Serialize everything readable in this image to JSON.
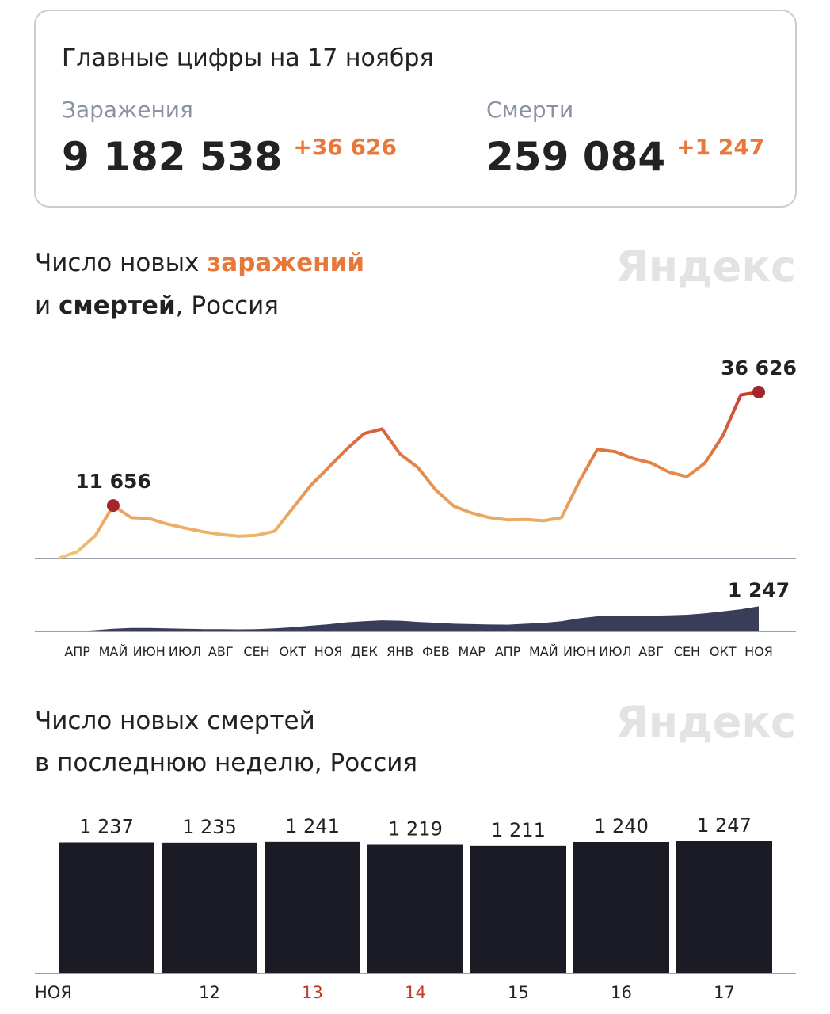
{
  "summary": {
    "title": "Главные цифры на 17 ноября",
    "items": [
      {
        "label": "Заражения",
        "value": "9 182 538",
        "delta": "+36 626"
      },
      {
        "label": "Смерти",
        "value": "259 084",
        "delta": "+1 247"
      }
    ]
  },
  "chart_data": [
    {
      "type": "line",
      "title_parts": [
        "Число новых ",
        "заражений",
        "и ",
        "смертей",
        ", Россия"
      ],
      "watermark": "Яндекс",
      "categories": [
        null,
        "АПР",
        null,
        "МАЙ",
        null,
        "ИЮН",
        null,
        "ИЮЛ",
        null,
        "АВГ",
        null,
        "СЕН",
        null,
        "ОКТ",
        null,
        "НОЯ",
        null,
        "ДЕК",
        null,
        "ЯНВ",
        null,
        "ФЕВ",
        null,
        "МАР",
        null,
        "АПР",
        null,
        "МАЙ",
        null,
        "ИЮН",
        null,
        "ИЮЛ",
        null,
        "АВГ",
        null,
        "СЕН",
        null,
        "ОКТ",
        null,
        "НОЯ"
      ],
      "series": [
        {
          "type": "line",
          "values": [
            100,
            1500,
            5000,
            11656,
            9000,
            8800,
            7600,
            6700,
            5900,
            5300,
            4900,
            5100,
            6000,
            11000,
            16000,
            20000,
            24000,
            27500,
            28500,
            23000,
            20000,
            15000,
            11500,
            10000,
            9000,
            8500,
            8600,
            8300,
            9000,
            17000,
            24000,
            23500,
            22000,
            21000,
            19000,
            18000,
            21000,
            27000,
            36000,
            36626
          ],
          "value_labels": [
            null,
            null,
            null,
            "11 656",
            null,
            null,
            null,
            null,
            null,
            null,
            null,
            null,
            null,
            null,
            null,
            null,
            null,
            null,
            null,
            null,
            null,
            null,
            null,
            null,
            null,
            null,
            null,
            null,
            null,
            null,
            null,
            null,
            null,
            null,
            null,
            null,
            null,
            null,
            null,
            "36 626"
          ],
          "colors": [
            "#efc477",
            "#e58a4a",
            "#c8352c"
          ],
          "ylim": [
            0,
            38000
          ]
        },
        {
          "type": "area",
          "values": [
            0,
            10,
            60,
            130,
            170,
            170,
            150,
            130,
            110,
            110,
            100,
            110,
            150,
            200,
            280,
            350,
            450,
            500,
            550,
            530,
            470,
            430,
            380,
            360,
            340,
            330,
            380,
            420,
            500,
            650,
            750,
            780,
            790,
            780,
            800,
            830,
            900,
            1000,
            1100,
            1247
          ],
          "value_labels": [
            null,
            null,
            null,
            null,
            null,
            null,
            null,
            null,
            null,
            null,
            null,
            null,
            null,
            null,
            null,
            null,
            null,
            null,
            null,
            null,
            null,
            null,
            null,
            null,
            null,
            null,
            null,
            null,
            null,
            null,
            null,
            null,
            null,
            null,
            null,
            null,
            null,
            null,
            null,
            "1 247"
          ],
          "color": "#3a3d5a",
          "ylim": [
            0,
            1500
          ]
        }
      ]
    },
    {
      "type": "bar",
      "title_lines": [
        "Число новых смертей",
        "в последнюю неделю, Россия"
      ],
      "watermark": "Яндекс",
      "categories": [
        "НОЯ",
        "12",
        "13",
        "14",
        "15",
        "16",
        "17"
      ],
      "category_colors": [
        "#222222",
        "#222222",
        "#c0392b",
        "#c0392b",
        "#222222",
        "#222222",
        "#222222"
      ],
      "values": [
        1237,
        1235,
        1241,
        1219,
        1211,
        1240,
        1247
      ],
      "value_labels": [
        "1 237",
        "1 235",
        "1 241",
        "1 219",
        "1 211",
        "1 240",
        "1 247"
      ],
      "color": "#1b1b26",
      "ylim": [
        250,
        1300
      ]
    }
  ]
}
